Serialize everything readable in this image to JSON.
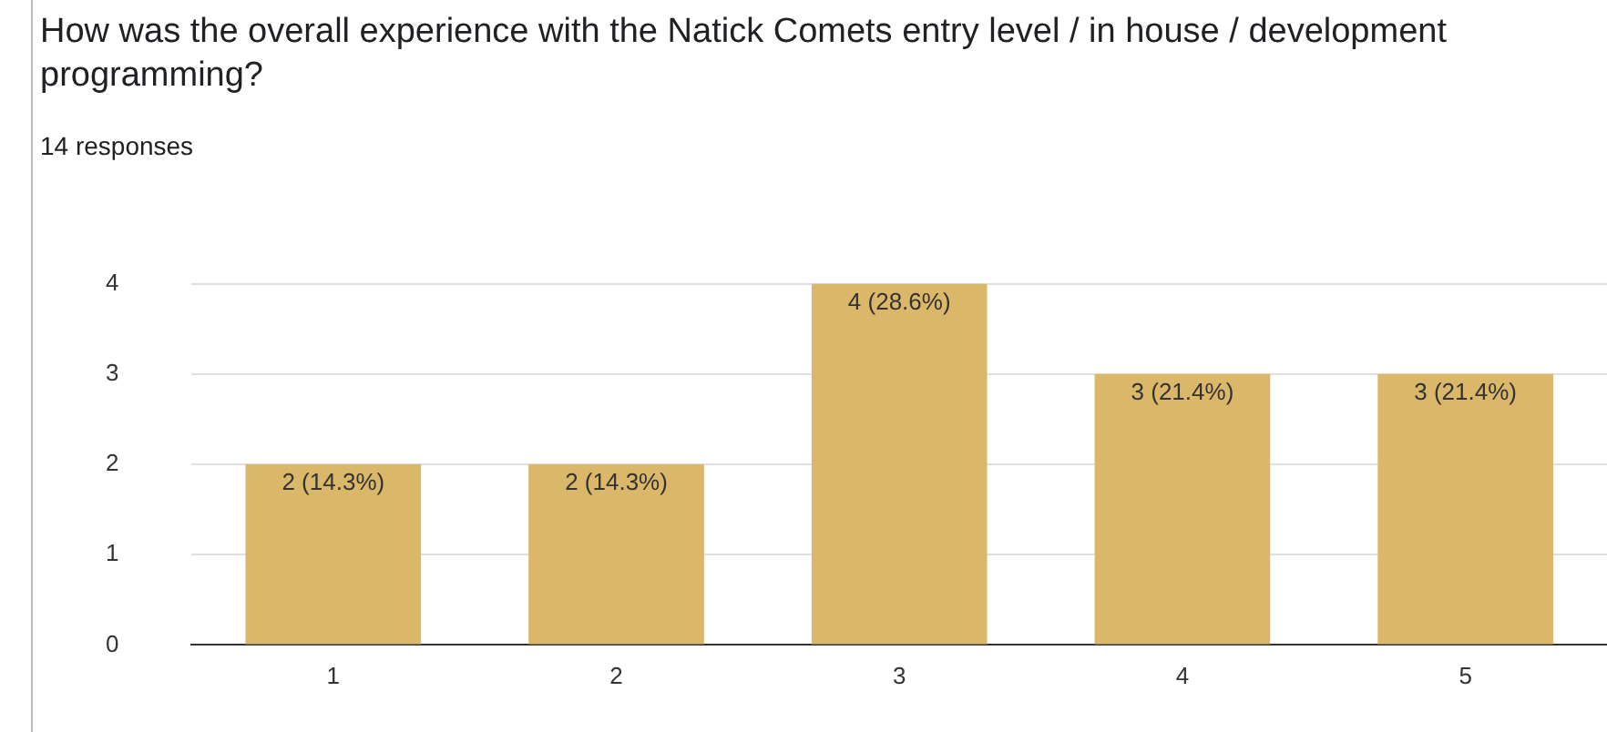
{
  "chart_data": {
    "type": "bar",
    "title": "How was the overall experience with the Natick Comets entry level / in house / development programming?",
    "subtitle": "14 responses",
    "categories": [
      "1",
      "2",
      "3",
      "4",
      "5"
    ],
    "values": [
      2,
      2,
      4,
      3,
      3
    ],
    "value_labels": [
      "2 (14.3%)",
      "2 (14.3%)",
      "4 (28.6%)",
      "3 (21.4%)",
      "3 (21.4%)"
    ],
    "color": "#dbb76a",
    "ylim": [
      0,
      4
    ],
    "yticks": [
      0,
      1,
      2,
      3,
      4
    ],
    "grid": "y",
    "legend": false
  }
}
